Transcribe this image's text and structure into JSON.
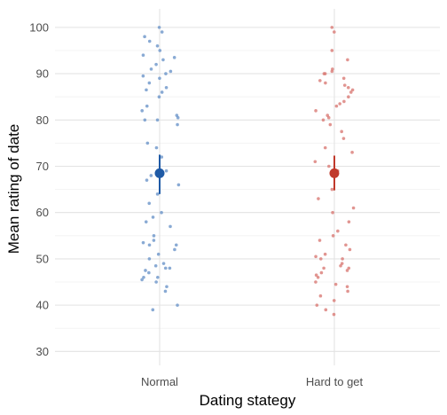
{
  "chart_data": {
    "type": "scatter",
    "xlabel": "Dating stategy",
    "ylabel": "Mean rating of date",
    "categories": [
      "Normal",
      "Hard to get"
    ],
    "ylim": [
      27,
      104
    ],
    "yticks": [
      30,
      40,
      50,
      60,
      70,
      80,
      90,
      100
    ],
    "grid": true,
    "colors": {
      "Normal": "#1f5aa6",
      "Hard to get": "#c0392b",
      "Normal_points": "#6b95c9",
      "Hard to get_points": "#d97b76"
    },
    "summary": [
      {
        "category": "Normal",
        "mean": 68.5,
        "lower": 64.0,
        "upper": 72.5
      },
      {
        "category": "Hard to get",
        "mean": 68.5,
        "lower": 64.8,
        "upper": 72.3
      }
    ],
    "series": [
      {
        "category": "Normal",
        "values": [
          100,
          99,
          98,
          97,
          96,
          95,
          94,
          93.5,
          93,
          92,
          91,
          90.5,
          90,
          89.5,
          89,
          88,
          87,
          86.5,
          86,
          85,
          83,
          82,
          81,
          80.5,
          80,
          80,
          79,
          75,
          74,
          72,
          69,
          68,
          67,
          66,
          64,
          62,
          60,
          59,
          58,
          57,
          55,
          54,
          53.5,
          53,
          53,
          52,
          51,
          50,
          49,
          48.5,
          48,
          48,
          47.5,
          47,
          46,
          46,
          45.5,
          45,
          44,
          43,
          40,
          39
        ]
      },
      {
        "category": "Hard to get",
        "values": [
          100,
          99,
          95,
          93,
          91,
          90.5,
          90,
          90,
          89,
          88.5,
          88,
          87.5,
          87,
          86.5,
          86,
          85,
          84,
          83.5,
          83,
          82,
          81,
          80.5,
          80,
          79,
          77.5,
          76,
          74,
          73,
          71,
          70,
          69,
          65,
          63,
          61,
          60,
          58,
          56,
          55,
          54,
          53,
          52,
          51,
          50.5,
          50,
          50,
          49,
          48.5,
          48,
          48,
          47.5,
          47,
          46.5,
          46,
          45,
          44.5,
          44,
          43,
          42,
          41,
          40,
          39,
          38
        ]
      }
    ]
  }
}
